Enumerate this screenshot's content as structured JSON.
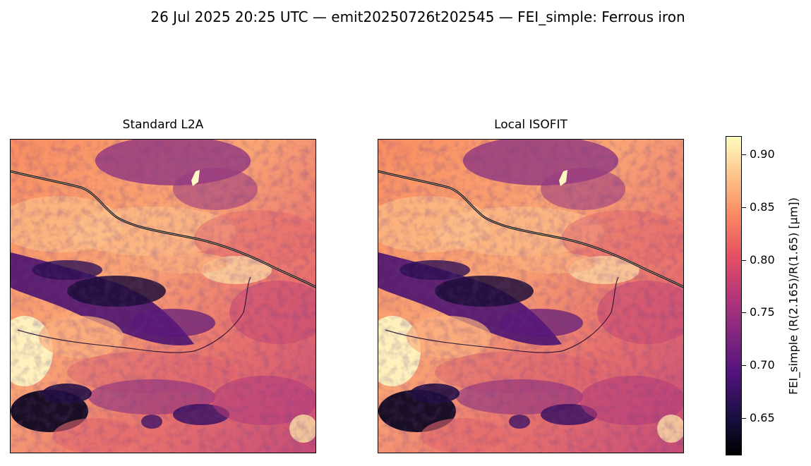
{
  "figure": {
    "title": "26 Jul 2025 20:25 UTC — emit20250726t202545 — FEI_simple: Ferrous iron"
  },
  "panels": [
    {
      "title": "Standard L2A"
    },
    {
      "title": "Local ISOFIT"
    }
  ],
  "colorbar": {
    "label": "FEI_simple  (R(2.165)/R(1.65)  [µm])",
    "colormap": "magma",
    "range": [
      0.615,
      0.917
    ],
    "ticks": [
      "0.65",
      "0.70",
      "0.75",
      "0.80",
      "0.85",
      "0.90"
    ],
    "colors": [
      "#000004",
      "#1c1044",
      "#4f127b",
      "#812581",
      "#b5367a",
      "#e55064",
      "#fb8761",
      "#fec287",
      "#fcfdbf"
    ]
  }
}
